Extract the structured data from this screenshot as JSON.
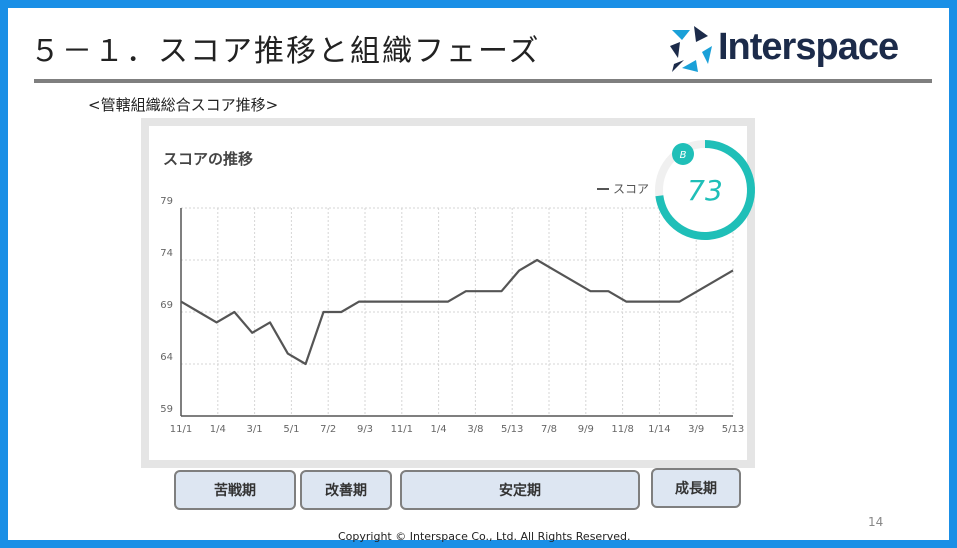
{
  "slide": {
    "title": "５－１．スコア推移と組織フェーズ",
    "subtitle": "<管轄組織総合スコア推移>",
    "logo_text": "Interspace",
    "page_number": "14",
    "copyright": "Copyright © Interspace Co., Ltd. All Rights Reserved."
  },
  "gauge": {
    "grade": "B",
    "score": "73",
    "fraction": 0.73,
    "color": "#1fbfb8"
  },
  "phases": [
    {
      "label": "苦戦期"
    },
    {
      "label": "改善期"
    },
    {
      "label": "安定期"
    },
    {
      "label": "成長期"
    }
  ],
  "chart_data": {
    "type": "line",
    "title": "スコアの推移",
    "legend": "スコア",
    "ylim": [
      59,
      79
    ],
    "yticks": [
      59,
      64,
      69,
      74,
      79
    ],
    "xtick_labels": [
      "11/1",
      "1/4",
      "3/1",
      "5/1",
      "7/2",
      "9/3",
      "11/1",
      "1/4",
      "3/8",
      "5/13",
      "7/8",
      "9/9",
      "11/8",
      "1/14",
      "3/9",
      "5/13"
    ],
    "series": [
      {
        "name": "スコア",
        "values": [
          70,
          69,
          68,
          69,
          67,
          68,
          65,
          64,
          69,
          69,
          70,
          70,
          70,
          70,
          70,
          70,
          71,
          71,
          71,
          73,
          74,
          73,
          72,
          71,
          71,
          70,
          70,
          70,
          70,
          71,
          72,
          73
        ]
      }
    ],
    "grid": true,
    "line_color": "#555555"
  }
}
